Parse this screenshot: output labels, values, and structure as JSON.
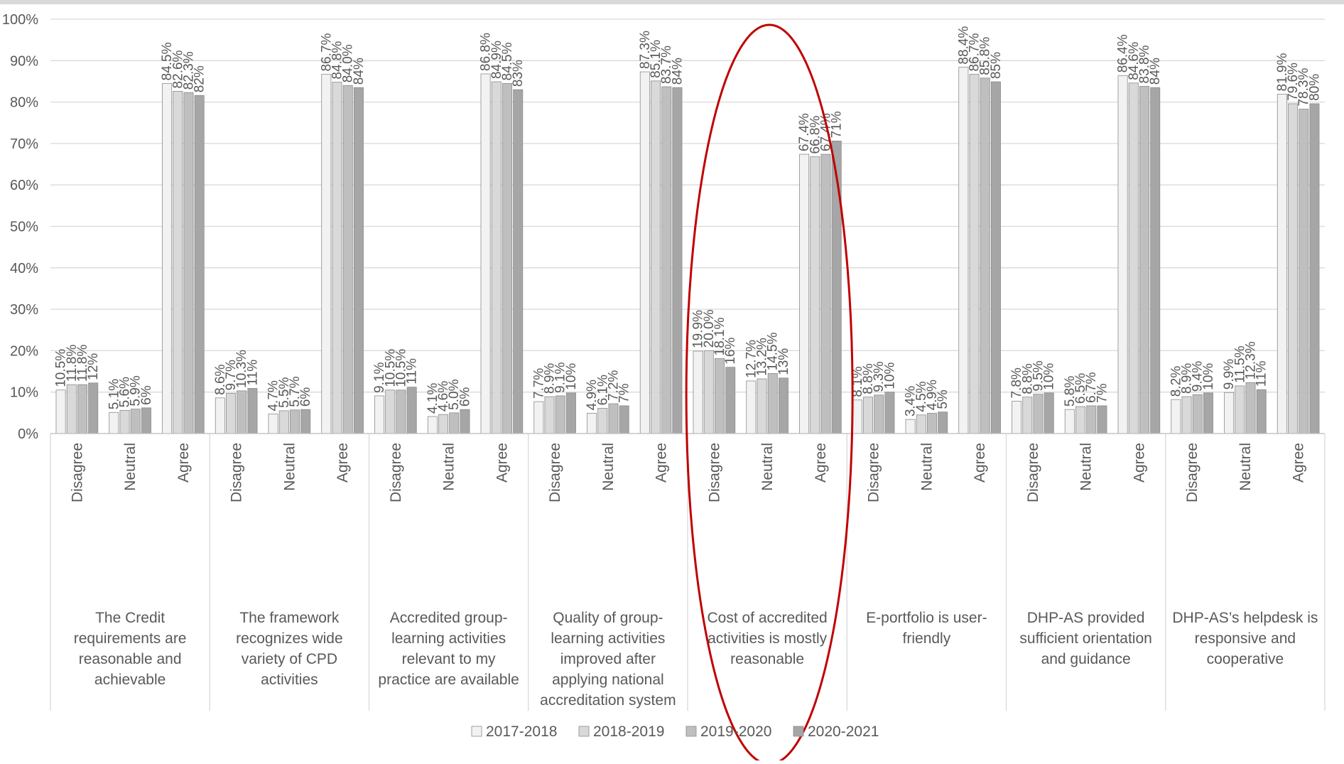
{
  "chart_data": {
    "type": "bar",
    "title": "",
    "xlabel": "",
    "ylabel": "",
    "ylim": [
      0,
      100
    ],
    "y_ticks": [
      "0%",
      "10%",
      "20%",
      "30%",
      "40%",
      "50%",
      "60%",
      "70%",
      "80%",
      "90%",
      "100%"
    ],
    "grid": true,
    "legend_position": "bottom",
    "responses": [
      "Disagree",
      "Neutral",
      "Agree"
    ],
    "series_names": [
      "2017-2018",
      "2018-2019",
      "2019-2020",
      "2020-2021"
    ],
    "series_colors": [
      "#f2f2f2",
      "#d9d9d9",
      "#bfbfbf",
      "#a6a6a6"
    ],
    "highlight": {
      "group_index": 4,
      "color": "#c00000"
    },
    "groups": [
      {
        "label": "The Credit requirements are reasonable and achievable",
        "values": [
          [
            10.5,
            11.8,
            11.8,
            12.2
          ],
          [
            5.1,
            5.6,
            5.9,
            6.2
          ],
          [
            84.5,
            82.6,
            82.3,
            81.6
          ]
        ],
        "labels": [
          [
            "10.5%",
            "11.8%",
            "11.8%",
            "12%"
          ],
          [
            "5.1%",
            "5.6%",
            "5.9%",
            "6%"
          ],
          [
            "84.5%",
            "82.6%",
            "82.3%",
            "82%"
          ]
        ]
      },
      {
        "label": "The framework recognizes wide variety of CPD activities",
        "values": [
          [
            8.6,
            9.7,
            10.3,
            10.9
          ],
          [
            4.7,
            5.5,
            5.7,
            5.8
          ],
          [
            86.7,
            84.8,
            84.0,
            83.5
          ]
        ],
        "labels": [
          [
            "8.6%",
            "9.7%",
            "10.3%",
            "11%"
          ],
          [
            "4.7%",
            "5.5%",
            "5.7%",
            "6%"
          ],
          [
            "86.7%",
            "84.8%",
            "84.0%",
            "84%"
          ]
        ]
      },
      {
        "label": "Accredited group-learning activities relevant to my practice are available",
        "values": [
          [
            9.1,
            10.5,
            10.5,
            11.2
          ],
          [
            4.1,
            4.6,
            5.0,
            5.8
          ],
          [
            86.8,
            84.9,
            84.5,
            83.0
          ]
        ],
        "labels": [
          [
            "9.1%",
            "10.5%",
            "10.5%",
            "11%"
          ],
          [
            "4.1%",
            "4.6%",
            "5.0%",
            "6%"
          ],
          [
            "86.8%",
            "84.9%",
            "84.5%",
            "83%"
          ]
        ]
      },
      {
        "label": "Quality of group-learning activities improved after applying national accreditation system",
        "values": [
          [
            7.7,
            8.9,
            9.1,
            9.8
          ],
          [
            4.9,
            6.1,
            7.2,
            6.7
          ],
          [
            87.3,
            85.1,
            83.7,
            83.5
          ]
        ],
        "labels": [
          [
            "7.7%",
            "8.9%",
            "9.1%",
            "10%"
          ],
          [
            "4.9%",
            "6.1%",
            "7.2%",
            "7%"
          ],
          [
            "87.3%",
            "85.1%",
            "83.7%",
            "84%"
          ]
        ]
      },
      {
        "label": "Cost of accredited activities is mostly reasonable",
        "values": [
          [
            19.9,
            20.0,
            18.1,
            16.0
          ],
          [
            12.7,
            13.2,
            14.5,
            13.4
          ],
          [
            67.4,
            66.8,
            67.4,
            70.6
          ]
        ],
        "labels": [
          [
            "19.9%",
            "20.0%",
            "18.1%",
            "16%"
          ],
          [
            "12.7%",
            "13.2%",
            "14.5%",
            "13%"
          ],
          [
            "67.4%",
            "66.8%",
            "67.4%",
            "71%"
          ]
        ]
      },
      {
        "label": "E-portfolio is user-friendly",
        "values": [
          [
            8.1,
            8.8,
            9.3,
            10.0
          ],
          [
            3.4,
            4.5,
            4.9,
            5.2
          ],
          [
            88.4,
            86.7,
            85.8,
            84.9
          ]
        ],
        "labels": [
          [
            "8.1%",
            "8.8%",
            "9.3%",
            "10%"
          ],
          [
            "3.4%",
            "4.5%",
            "4.9%",
            "5%"
          ],
          [
            "88.4%",
            "86.7%",
            "85.8%",
            "85%"
          ]
        ]
      },
      {
        "label": "DHP-AS provided sufficient orientation and guidance",
        "values": [
          [
            7.8,
            8.8,
            9.5,
            9.8
          ],
          [
            5.8,
            6.5,
            6.7,
            6.7
          ],
          [
            86.4,
            84.6,
            83.8,
            83.5
          ]
        ],
        "labels": [
          [
            "7.8%",
            "8.8%",
            "9.5%",
            "10%"
          ],
          [
            "5.8%",
            "6.5%",
            "6.7%",
            "7%"
          ],
          [
            "86.4%",
            "84.6%",
            "83.8%",
            "84%"
          ]
        ]
      },
      {
        "label": "DHP-AS’s helpdesk is responsive and cooperative",
        "values": [
          [
            8.2,
            8.9,
            9.4,
            9.8
          ],
          [
            9.9,
            11.5,
            12.3,
            10.6
          ],
          [
            81.9,
            79.6,
            78.3,
            79.6
          ]
        ],
        "labels": [
          [
            "8.2%",
            "8.9%",
            "9.4%",
            "10%"
          ],
          [
            "9.9%",
            "11.5%",
            "12.3%",
            "11%"
          ],
          [
            "81.9%",
            "79.6%",
            "78.3%",
            "80%"
          ]
        ]
      }
    ]
  }
}
